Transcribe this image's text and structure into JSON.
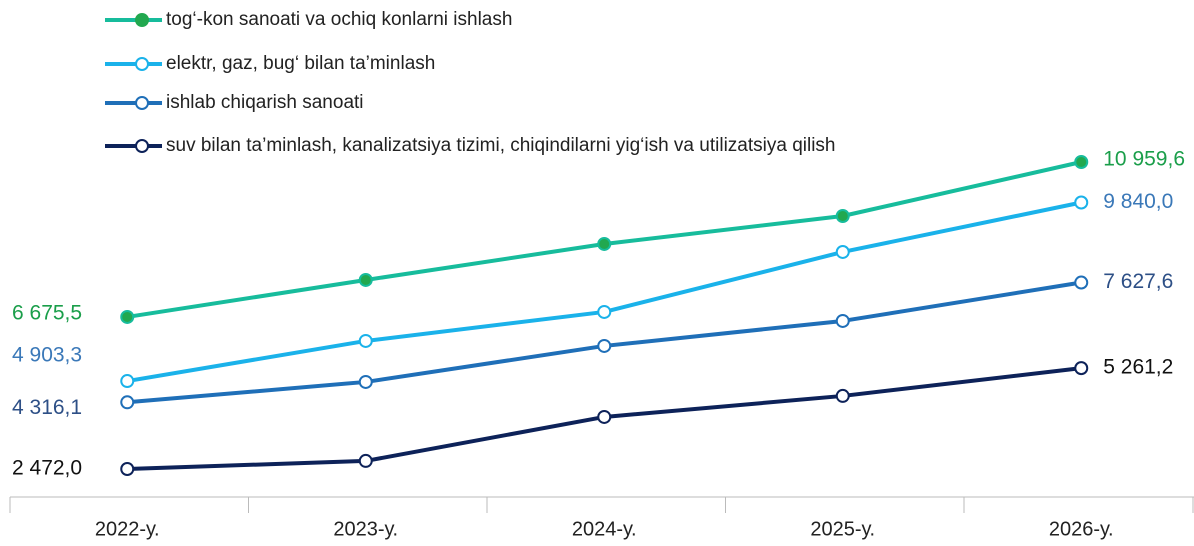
{
  "chart_data": {
    "type": "line",
    "categories": [
      "2022-у.",
      "2023-у.",
      "2024-у.",
      "2025-у.",
      "2026-у."
    ],
    "series": [
      {
        "name": "tog‘-kon sanoati va ochiq konlarni ishlash",
        "color": "#17bc9c",
        "marker_fill": "#22a84f",
        "label_color": "#1a9e4a",
        "values": [
          6675.5,
          7698,
          8693,
          9467,
          10959.6
        ],
        "value_labels": [
          "6 675,5",
          null,
          null,
          null,
          "10 959,6"
        ]
      },
      {
        "name": "elektr, gaz, bug‘ bilan ta’minlash",
        "color": "#1ab2ea",
        "marker_fill": "#ffffff",
        "label_color": "#3a78b8",
        "values": [
          4903.3,
          6012,
          6814,
          8472,
          9840.0
        ],
        "value_labels": [
          "4 903,3",
          null,
          null,
          null,
          "9 840,0"
        ]
      },
      {
        "name": "ishlab chiqarish sanoati",
        "color": "#1f6fb8",
        "marker_fill": "#ffffff",
        "label_color": "#2d4f86",
        "values": [
          4316.1,
          4879,
          5874,
          6565,
          7627.6
        ],
        "value_labels": [
          "4 316,1",
          null,
          null,
          null,
          "7 627,6"
        ]
      },
      {
        "name": "suv bilan ta’minlash, kanalizatsiya tizimi, chiqindilarni yig‘ish va utilizatsiya qilish",
        "color": "#0d2259",
        "marker_fill": "#ffffff",
        "label_color": "#111111",
        "values": [
          2472.0,
          2695,
          3911,
          4492,
          5261.2
        ],
        "value_labels": [
          "2 472,0",
          null,
          null,
          null,
          "5 261,2"
        ]
      }
    ]
  }
}
